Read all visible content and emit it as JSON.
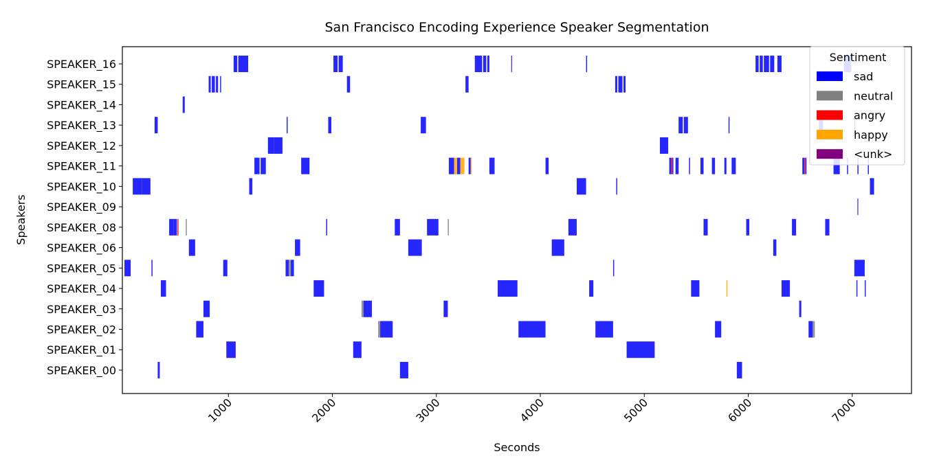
{
  "chart_data": {
    "type": "timeline",
    "title": "San Francisco Encoding Experience Speaker Segmentation",
    "xlabel": "Seconds",
    "ylabel": "Speakers",
    "xlim": [
      -20,
      7570
    ],
    "xticks": [
      1000,
      2000,
      3000,
      4000,
      5000,
      6000,
      7000
    ],
    "grid": false,
    "legend": {
      "title": "Sentiment",
      "placement": "top-right",
      "entries": [
        {
          "label": "sad",
          "color": "#0000ff"
        },
        {
          "label": "neutral",
          "color": "#808080"
        },
        {
          "label": "angry",
          "color": "#ff0000"
        },
        {
          "label": "happy",
          "color": "#ffa500"
        },
        {
          "label": "<unk>",
          "color": "#800080"
        }
      ]
    },
    "speakers": [
      "SPEAKER_16",
      "SPEAKER_15",
      "SPEAKER_14",
      "SPEAKER_13",
      "SPEAKER_12",
      "SPEAKER_11",
      "SPEAKER_10",
      "SPEAKER_09",
      "SPEAKER_08",
      "SPEAKER_06",
      "SPEAKER_05",
      "SPEAKER_04",
      "SPEAKER_03",
      "SPEAKER_02",
      "SPEAKER_01",
      "SPEAKER_00"
    ],
    "segments": {
      "SPEAKER_16": [
        [
          1050,
          1085,
          "sad"
        ],
        [
          1095,
          1190,
          "sad"
        ],
        [
          2010,
          2050,
          "sad"
        ],
        [
          2060,
          2100,
          "sad"
        ],
        [
          3370,
          3440,
          "sad"
        ],
        [
          3450,
          3480,
          "sad"
        ],
        [
          3490,
          3510,
          "sad"
        ],
        [
          3720,
          3728,
          "sad"
        ],
        [
          4440,
          4450,
          "sad"
        ],
        [
          6070,
          6100,
          "sad"
        ],
        [
          6110,
          6140,
          "sad"
        ],
        [
          6150,
          6200,
          "sad"
        ],
        [
          6210,
          6250,
          "sad"
        ],
        [
          6280,
          6320,
          "sad"
        ],
        [
          6920,
          6990,
          "sad"
        ]
      ],
      "SPEAKER_15": [
        [
          810,
          830,
          "sad"
        ],
        [
          840,
          870,
          "sad"
        ],
        [
          880,
          900,
          "sad"
        ],
        [
          920,
          930,
          "sad"
        ],
        [
          2140,
          2170,
          "sad"
        ],
        [
          3280,
          3310,
          "sad"
        ],
        [
          4720,
          4740,
          "sad"
        ],
        [
          4750,
          4790,
          "sad"
        ],
        [
          4800,
          4820,
          "sad"
        ]
      ],
      "SPEAKER_14": [
        [
          560,
          580,
          "sad"
        ]
      ],
      "SPEAKER_13": [
        [
          290,
          320,
          "sad"
        ],
        [
          1560,
          1570,
          "sad"
        ],
        [
          1960,
          1990,
          "sad"
        ],
        [
          2850,
          2900,
          "sad"
        ],
        [
          5330,
          5370,
          "sad"
        ],
        [
          5380,
          5420,
          "sad"
        ],
        [
          5810,
          5820,
          "sad"
        ],
        [
          6680,
          6720,
          "sad"
        ],
        [
          7020,
          7030,
          "sad"
        ]
      ],
      "SPEAKER_12": [
        [
          1380,
          1440,
          "sad"
        ],
        [
          1440,
          1520,
          "sad"
        ],
        [
          5150,
          5230,
          "sad"
        ]
      ],
      "SPEAKER_11": [
        [
          1250,
          1300,
          "sad"
        ],
        [
          1310,
          1360,
          "sad"
        ],
        [
          1700,
          1780,
          "sad"
        ],
        [
          3120,
          3170,
          "sad"
        ],
        [
          3170,
          3200,
          "happy"
        ],
        [
          3200,
          3230,
          "sad"
        ],
        [
          3230,
          3270,
          "happy"
        ],
        [
          3310,
          3330,
          "sad"
        ],
        [
          3330,
          3340,
          "happy"
        ],
        [
          3510,
          3560,
          "sad"
        ],
        [
          4050,
          4080,
          "sad"
        ],
        [
          5240,
          5260,
          "sad"
        ],
        [
          5260,
          5270,
          "angry"
        ],
        [
          5270,
          5280,
          "sad"
        ],
        [
          5300,
          5330,
          "sad"
        ],
        [
          5430,
          5440,
          "sad"
        ],
        [
          5540,
          5570,
          "sad"
        ],
        [
          5650,
          5680,
          "sad"
        ],
        [
          5770,
          5790,
          "sad"
        ],
        [
          5840,
          5880,
          "sad"
        ],
        [
          6520,
          6540,
          "sad"
        ],
        [
          6540,
          6550,
          "angry"
        ],
        [
          6550,
          6560,
          "sad"
        ],
        [
          6820,
          6880,
          "sad"
        ],
        [
          6950,
          6960,
          "sad"
        ],
        [
          7050,
          7060,
          "sad"
        ],
        [
          7150,
          7160,
          "sad"
        ]
      ],
      "SPEAKER_10": [
        [
          80,
          170,
          "sad"
        ],
        [
          170,
          250,
          "sad"
        ],
        [
          1200,
          1230,
          "sad"
        ],
        [
          4350,
          4440,
          "sad"
        ],
        [
          4730,
          4740,
          "sad"
        ],
        [
          7170,
          7210,
          "sad"
        ]
      ],
      "SPEAKER_09": [
        [
          7050,
          7058,
          "sad"
        ]
      ],
      "SPEAKER_08": [
        [
          430,
          470,
          "sad"
        ],
        [
          470,
          505,
          "sad"
        ],
        [
          510,
          520,
          "angry"
        ],
        [
          590,
          600,
          "neutral"
        ],
        [
          1940,
          1950,
          "sad"
        ],
        [
          2600,
          2650,
          "sad"
        ],
        [
          2910,
          3020,
          "sad"
        ],
        [
          3110,
          3120,
          "neutral"
        ],
        [
          4270,
          4350,
          "sad"
        ],
        [
          5570,
          5610,
          "sad"
        ],
        [
          5980,
          6010,
          "sad"
        ],
        [
          6420,
          6460,
          "sad"
        ],
        [
          6740,
          6780,
          "sad"
        ]
      ],
      "SPEAKER_06": [
        [
          620,
          680,
          "sad"
        ],
        [
          1640,
          1690,
          "sad"
        ],
        [
          2730,
          2860,
          "sad"
        ],
        [
          4110,
          4230,
          "sad"
        ],
        [
          6240,
          6270,
          "sad"
        ]
      ],
      "SPEAKER_05": [
        [
          0,
          60,
          "sad"
        ],
        [
          260,
          270,
          "sad"
        ],
        [
          950,
          990,
          "sad"
        ],
        [
          1550,
          1580,
          "sad"
        ],
        [
          1580,
          1600,
          "neutral"
        ],
        [
          1600,
          1630,
          "sad"
        ],
        [
          4700,
          4710,
          "sad"
        ],
        [
          7020,
          7120,
          "sad"
        ]
      ],
      "SPEAKER_04": [
        [
          350,
          400,
          "sad"
        ],
        [
          1820,
          1920,
          "sad"
        ],
        [
          3590,
          3780,
          "sad"
        ],
        [
          4470,
          4510,
          "sad"
        ],
        [
          5450,
          5530,
          "sad"
        ],
        [
          5790,
          5800,
          "happy"
        ],
        [
          6320,
          6400,
          "sad"
        ],
        [
          7040,
          7050,
          "sad"
        ],
        [
          7120,
          7130,
          "sad"
        ]
      ],
      "SPEAKER_03": [
        [
          760,
          820,
          "sad"
        ],
        [
          2280,
          2300,
          "neutral"
        ],
        [
          2300,
          2380,
          "sad"
        ],
        [
          3070,
          3110,
          "sad"
        ],
        [
          6490,
          6510,
          "sad"
        ]
      ],
      "SPEAKER_02": [
        [
          690,
          760,
          "sad"
        ],
        [
          2440,
          2460,
          "neutral"
        ],
        [
          2460,
          2580,
          "sad"
        ],
        [
          3790,
          4050,
          "sad"
        ],
        [
          4530,
          4700,
          "sad"
        ],
        [
          5680,
          5740,
          "sad"
        ],
        [
          6580,
          6620,
          "sad"
        ],
        [
          6620,
          6640,
          "neutral"
        ]
      ],
      "SPEAKER_01": [
        [
          980,
          1070,
          "sad"
        ],
        [
          2200,
          2280,
          "sad"
        ],
        [
          4830,
          5100,
          "sad"
        ]
      ],
      "SPEAKER_00": [
        [
          320,
          340,
          "sad"
        ],
        [
          2650,
          2730,
          "sad"
        ],
        [
          5890,
          5940,
          "sad"
        ]
      ]
    }
  }
}
